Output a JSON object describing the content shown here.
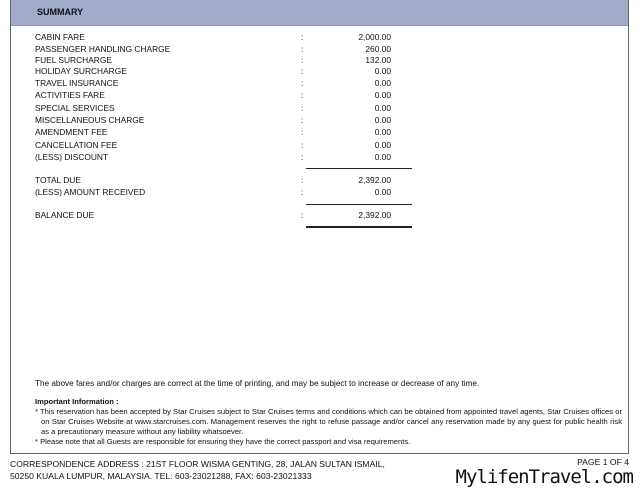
{
  "summary": {
    "title": "SUMMARY",
    "items": [
      {
        "label": "CABIN FARE",
        "value": "2,000.00"
      },
      {
        "label": "PASSENGER HANDLING CHARGE",
        "value": "260.00"
      },
      {
        "label": "FUEL SURCHARGE",
        "value": "132.00"
      },
      {
        "label": "HOLIDAY SURCHARGE",
        "value": "0.00"
      },
      {
        "label": "TRAVEL INSURANCE",
        "value": "0.00"
      },
      {
        "label": "ACTIVITIES FARE",
        "value": "0.00"
      },
      {
        "label": "SPECIAL SERVICES",
        "value": "0.00"
      },
      {
        "label": "MISCELLANEOUS CHARGE",
        "value": "0.00"
      },
      {
        "label": "AMENDMENT FEE",
        "value": "0.00"
      },
      {
        "label": "CANCELLATION FEE",
        "value": "0.00"
      },
      {
        "label": "(LESS) DISCOUNT",
        "value": "0.00"
      }
    ],
    "total_due": {
      "label": "TOTAL DUE",
      "value": "2,392.00"
    },
    "amount_received": {
      "label": "(LESS) AMOUNT RECEIVED",
      "value": "0.00"
    },
    "balance_due": {
      "label": "BALANCE DUE",
      "value": "2,392.00"
    },
    "separator": ":"
  },
  "disclaimer": "The above fares and/or charges are correct at the time of printing, and may be subject to increase or decrease of any time.",
  "important": {
    "title": "Important Information :",
    "points": [
      "* This reservation has been accepted by Star Cruises subject to Star Cruises terms and conditions which can be obtained from appointed travel agents, Star Cruises offices or on Star Cruises Website at www.starcruises.com. Management reserves the right to refuse passage and/or cancel any reservation made by any guest for public health risk as a precautionary measure without any liability whatsoever.",
      "* Please note that all Guests are responsible for ensuring they have the correct passport and visa requirements."
    ]
  },
  "footer": {
    "address_line1": "CORRESPONDENCE ADDRESS : 21ST FLOOR WISMA GENTING, 28, JALAN SULTAN ISMAIL,",
    "address_line2": "50250 KUALA LUMPUR, MALAYSIA. TEL: 603-23021288, FAX: 603-23021333",
    "page": "PAGE 1 OF 4"
  },
  "watermark": "MylifenTravel.com"
}
